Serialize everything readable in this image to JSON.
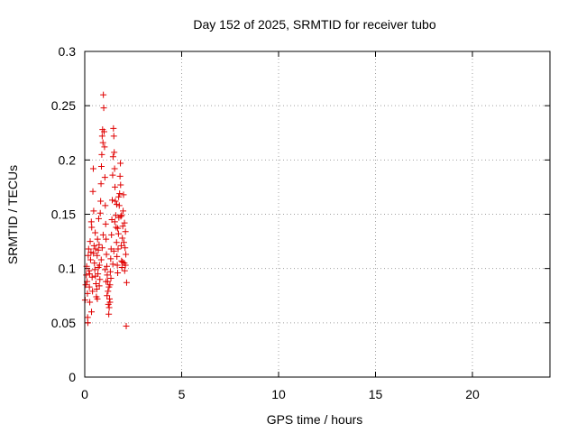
{
  "chart_data": {
    "type": "scatter",
    "title": "Day 152 of 2025, SRMTID for receiver tubo",
    "xlabel": "GPS time / hours",
    "ylabel": "SRMTID / TECUs",
    "xlim": [
      0,
      24
    ],
    "ylim": [
      0,
      0.3
    ],
    "xticks": [
      0,
      5,
      10,
      15,
      20
    ],
    "xtick_labels": [
      "0",
      "5",
      "10",
      "15",
      "20"
    ],
    "yticks": [
      0,
      0.05,
      0.1,
      0.15,
      0.2,
      0.25,
      0.3
    ],
    "ytick_labels": [
      "0",
      "0.05",
      "0.1",
      "0.15",
      "0.2",
      "0.25",
      "0.3"
    ],
    "grid": true,
    "marker": "+",
    "series": [
      {
        "name": "SRMTID",
        "color": "#e00000",
        "points": [
          [
            0.02,
            0.071
          ],
          [
            0.05,
            0.085
          ],
          [
            0.08,
            0.094
          ],
          [
            0.1,
            0.102
          ],
          [
            0.12,
            0.088
          ],
          [
            0.14,
            0.077
          ],
          [
            0.15,
            0.055
          ],
          [
            0.16,
            0.05
          ],
          [
            0.18,
            0.112
          ],
          [
            0.2,
            0.118
          ],
          [
            0.22,
            0.098
          ],
          [
            0.24,
            0.083
          ],
          [
            0.26,
            0.069
          ],
          [
            0.28,
            0.125
          ],
          [
            0.3,
            0.108
          ],
          [
            0.32,
            0.115
          ],
          [
            0.34,
            0.143
          ],
          [
            0.36,
            0.138
          ],
          [
            0.38,
            0.092
          ],
          [
            0.4,
            0.079
          ],
          [
            0.42,
            0.171
          ],
          [
            0.44,
            0.192
          ],
          [
            0.46,
            0.153
          ],
          [
            0.48,
            0.121
          ],
          [
            0.5,
            0.105
          ],
          [
            0.52,
            0.099
          ],
          [
            0.54,
            0.133
          ],
          [
            0.56,
            0.118
          ],
          [
            0.58,
            0.086
          ],
          [
            0.6,
            0.074
          ],
          [
            0.62,
            0.081
          ],
          [
            0.64,
            0.112
          ],
          [
            0.66,
            0.127
          ],
          [
            0.68,
            0.095
          ],
          [
            0.7,
            0.117
          ],
          [
            0.72,
            0.146
          ],
          [
            0.74,
            0.122
          ],
          [
            0.76,
            0.103
          ],
          [
            0.78,
            0.09
          ],
          [
            0.8,
            0.151
          ],
          [
            0.82,
            0.162
          ],
          [
            0.84,
            0.178
          ],
          [
            0.86,
            0.194
          ],
          [
            0.88,
            0.205
          ],
          [
            0.9,
            0.222
          ],
          [
            0.92,
            0.228
          ],
          [
            0.94,
            0.216
          ],
          [
            0.96,
            0.26
          ],
          [
            0.98,
            0.248
          ],
          [
            1.0,
            0.226
          ],
          [
            1.02,
            0.212
          ],
          [
            1.04,
            0.184
          ],
          [
            1.06,
            0.158
          ],
          [
            1.08,
            0.141
          ],
          [
            1.1,
            0.127
          ],
          [
            1.12,
            0.113
          ],
          [
            1.14,
            0.102
          ],
          [
            1.16,
            0.094
          ],
          [
            1.18,
            0.088
          ],
          [
            1.2,
            0.079
          ],
          [
            1.22,
            0.067
          ],
          [
            1.24,
            0.058
          ],
          [
            1.26,
            0.064
          ],
          [
            1.28,
            0.072
          ],
          [
            1.3,
            0.085
          ],
          [
            1.32,
            0.097
          ],
          [
            1.34,
            0.109
          ],
          [
            1.36,
            0.118
          ],
          [
            1.38,
            0.131
          ],
          [
            1.4,
            0.145
          ],
          [
            1.42,
            0.163
          ],
          [
            1.44,
            0.186
          ],
          [
            1.46,
            0.203
          ],
          [
            1.48,
            0.229
          ],
          [
            1.5,
            0.222
          ],
          [
            1.52,
            0.207
          ],
          [
            1.54,
            0.192
          ],
          [
            1.56,
            0.175
          ],
          [
            1.58,
            0.162
          ],
          [
            1.6,
            0.149
          ],
          [
            1.62,
            0.138
          ],
          [
            1.64,
            0.124
          ],
          [
            1.66,
            0.111
          ],
          [
            1.68,
            0.103
          ],
          [
            1.7,
            0.096
          ],
          [
            1.72,
            0.118
          ],
          [
            1.74,
            0.132
          ],
          [
            1.76,
            0.147
          ],
          [
            1.78,
            0.158
          ],
          [
            1.8,
            0.169
          ],
          [
            1.82,
            0.185
          ],
          [
            1.84,
            0.197
          ],
          [
            1.86,
            0.148
          ],
          [
            1.88,
            0.121
          ],
          [
            1.9,
            0.107
          ],
          [
            1.92,
            0.101
          ],
          [
            1.94,
            0.128
          ],
          [
            1.96,
            0.139
          ],
          [
            1.98,
            0.153
          ],
          [
            2.0,
            0.168
          ],
          [
            2.02,
            0.124
          ],
          [
            2.04,
            0.105
          ],
          [
            2.06,
            0.098
          ],
          [
            2.08,
            0.119
          ],
          [
            2.1,
            0.134
          ],
          [
            2.12,
            0.113
          ],
          [
            2.14,
            0.047
          ],
          [
            2.16,
            0.087
          ],
          [
            0.35,
            0.06
          ],
          [
            0.55,
            0.093
          ],
          [
            0.65,
            0.072
          ],
          [
            0.75,
            0.084
          ],
          [
            0.85,
            0.108
          ],
          [
            0.95,
            0.131
          ],
          [
            1.05,
            0.099
          ],
          [
            1.15,
            0.075
          ],
          [
            1.25,
            0.083
          ],
          [
            1.35,
            0.091
          ],
          [
            1.45,
            0.104
          ],
          [
            1.55,
            0.143
          ],
          [
            1.65,
            0.159
          ],
          [
            1.75,
            0.166
          ],
          [
            1.85,
            0.177
          ],
          [
            1.95,
            0.106
          ],
          [
            2.05,
            0.142
          ],
          [
            0.25,
            0.095
          ],
          [
            0.45,
            0.114
          ],
          [
            0.7,
            0.101
          ],
          [
            0.9,
            0.119
          ],
          [
            1.1,
            0.088
          ],
          [
            1.3,
            0.069
          ],
          [
            1.5,
            0.116
          ],
          [
            1.7,
            0.137
          ],
          [
            1.9,
            0.149
          ],
          [
            2.1,
            0.103
          ]
        ]
      }
    ]
  }
}
